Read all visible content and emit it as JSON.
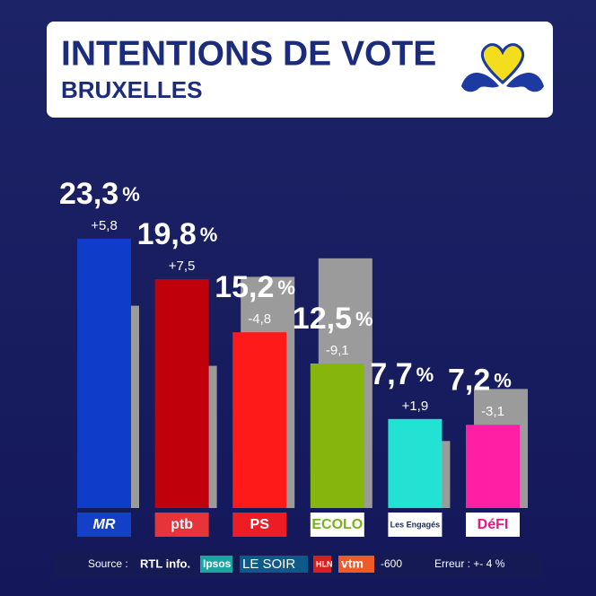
{
  "chart_data": {
    "type": "bar",
    "title": "INTENTIONS DE VOTE",
    "subtitle": "BRUXELLES",
    "categories": [
      "MR",
      "ptb",
      "PS",
      "ECOLO",
      "Les Engagés",
      "DéFI"
    ],
    "category_colors": [
      "#1440c8",
      "#e8333a",
      "#ee1c25",
      "#ffffff",
      "#ffffff",
      "#ffffff"
    ],
    "category_text_colors": [
      "#ffffff",
      "#ffffff",
      "#ffffff",
      "#7ab317",
      "#1b2a5a",
      "#e8177f"
    ],
    "unit": "%",
    "series": [
      {
        "colors": [
          "#0f3cc9",
          "#c0000b",
          "#ff1a1a",
          "#86b60c",
          "#22e3d3",
          "#ff1fa5"
        ],
        "values": [
          23.3,
          19.8,
          15.2,
          12.5,
          7.7,
          7.2
        ],
        "value_labels": [
          "23,3",
          "19,8",
          "15,2",
          "12,5",
          "7,7",
          "7,2"
        ],
        "change_labels": [
          "+5,8",
          "+7,5",
          "-4,8",
          "-9,1",
          "+1,9",
          "-3,1"
        ]
      },
      {
        "color": "#9b9b9b",
        "values": [
          17.5,
          12.3,
          20.0,
          21.6,
          5.8,
          10.3
        ]
      }
    ],
    "source": [
      "Source :",
      "RTL info.",
      "Ipsos",
      "LE SOIR",
      "HLN",
      "vtm",
      "-600",
      "Erreur : +- 4 %"
    ]
  }
}
